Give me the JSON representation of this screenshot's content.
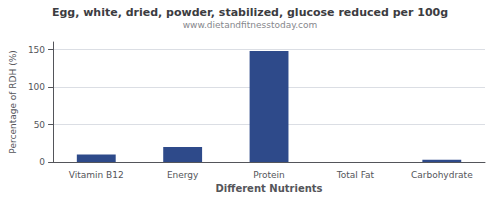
{
  "chart_data": {
    "type": "bar",
    "title": "Egg, white, dried, powder, stabilized, glucose reduced per 100g",
    "subtitle": "www.dietandfitnesstoday.com",
    "xlabel": "Different Nutrients",
    "ylabel": "Percentage of RDH (%)",
    "categories": [
      "Vitamin B12",
      "Energy",
      "Protein",
      "Total Fat",
      "Carbohydrate"
    ],
    "values": [
      10,
      20,
      148,
      0,
      3
    ],
    "color": "#2e4a8a",
    "ylim": [
      0,
      160
    ],
    "yticks": [
      0,
      50,
      100,
      150
    ],
    "grid": true
  }
}
